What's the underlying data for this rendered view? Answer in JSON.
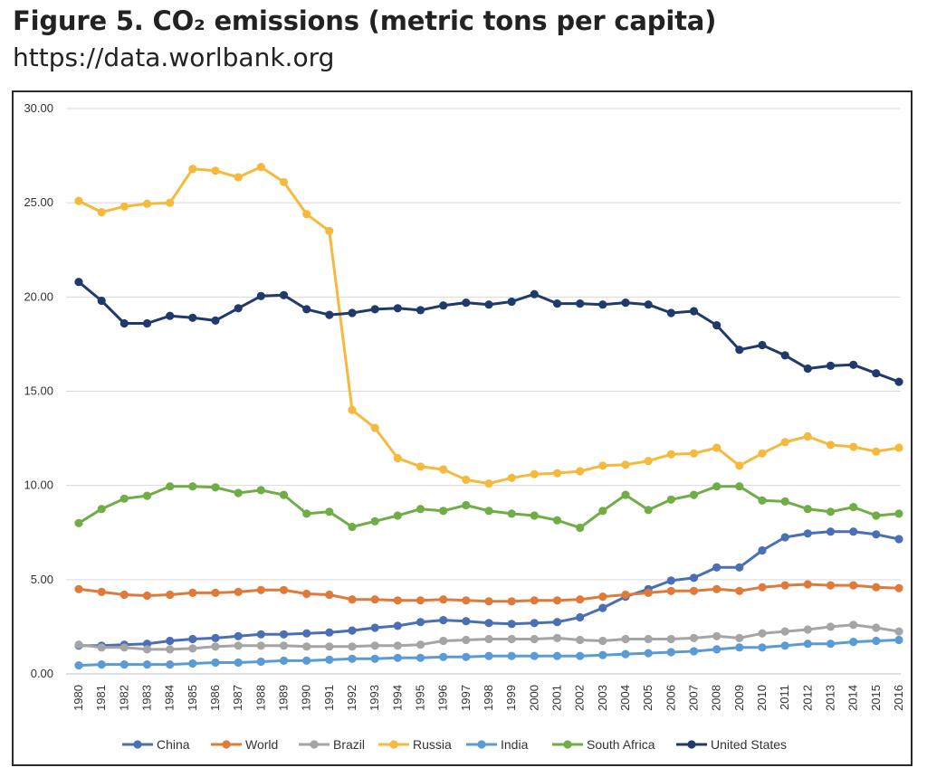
{
  "figure": {
    "title": "Figure 5. CO₂ emissions (metric tons per capita)",
    "source": "https://data.worlbank.org"
  },
  "chart_data": {
    "type": "line",
    "title": "Figure 5. CO₂ emissions (metric tons per capita)",
    "xlabel": "",
    "ylabel": "",
    "ylim": [
      0,
      30
    ],
    "grid": true,
    "legend": "bottom",
    "yticks": [
      "0.00",
      "5.00",
      "10.00",
      "15.00",
      "20.00",
      "25.00",
      "30.00"
    ],
    "x": [
      "1980",
      "1981",
      "1982",
      "1983",
      "1984",
      "1985",
      "1986",
      "1987",
      "1988",
      "1989",
      "1990",
      "1991",
      "1992",
      "1993",
      "1994",
      "1995",
      "1996",
      "1997",
      "1998",
      "1999",
      "2000",
      "2001",
      "2002",
      "2003",
      "2004",
      "2005",
      "2006",
      "2007",
      "2008",
      "2009",
      "2010",
      "2011",
      "2012",
      "2013",
      "2014",
      "2015",
      "2016"
    ],
    "series": [
      {
        "name": "China",
        "color": "#4a6fb5",
        "values": [
          1.5,
          1.5,
          1.55,
          1.6,
          1.75,
          1.85,
          1.9,
          2.0,
          2.1,
          2.1,
          2.15,
          2.2,
          2.3,
          2.45,
          2.55,
          2.75,
          2.85,
          2.8,
          2.7,
          2.65,
          2.7,
          2.75,
          3.0,
          3.5,
          4.1,
          4.5,
          4.95,
          5.1,
          5.65,
          5.65,
          6.55,
          7.25,
          7.45,
          7.55,
          7.55,
          7.4,
          7.15
        ]
      },
      {
        "name": "World",
        "color": "#e07a3a",
        "values": [
          4.5,
          4.35,
          4.2,
          4.15,
          4.2,
          4.3,
          4.3,
          4.35,
          4.45,
          4.45,
          4.25,
          4.2,
          3.95,
          3.95,
          3.9,
          3.9,
          3.95,
          3.9,
          3.85,
          3.85,
          3.9,
          3.9,
          3.95,
          4.1,
          4.2,
          4.3,
          4.4,
          4.4,
          4.5,
          4.4,
          4.6,
          4.7,
          4.75,
          4.7,
          4.7,
          4.6,
          4.55
        ]
      },
      {
        "name": "Brazil",
        "color": "#a5a5a5",
        "values": [
          1.55,
          1.4,
          1.4,
          1.3,
          1.3,
          1.35,
          1.45,
          1.5,
          1.5,
          1.5,
          1.45,
          1.45,
          1.45,
          1.5,
          1.5,
          1.55,
          1.75,
          1.8,
          1.85,
          1.85,
          1.85,
          1.9,
          1.8,
          1.75,
          1.85,
          1.85,
          1.85,
          1.9,
          2.0,
          1.9,
          2.15,
          2.25,
          2.35,
          2.5,
          2.6,
          2.45,
          2.25
        ]
      },
      {
        "name": "Russia",
        "color": "#f5b93d",
        "values": [
          25.1,
          24.5,
          24.8,
          24.95,
          25.0,
          26.8,
          26.7,
          26.35,
          26.9,
          26.1,
          24.4,
          23.5,
          14.0,
          13.05,
          11.45,
          11.0,
          10.85,
          10.3,
          10.1,
          10.4,
          10.6,
          10.65,
          10.75,
          11.05,
          11.1,
          11.3,
          11.65,
          11.7,
          12.0,
          11.05,
          11.7,
          12.3,
          12.6,
          12.15,
          12.05,
          11.8,
          12.0
        ]
      },
      {
        "name": "India",
        "color": "#5b9bd5",
        "values": [
          0.45,
          0.5,
          0.5,
          0.5,
          0.5,
          0.55,
          0.6,
          0.6,
          0.65,
          0.7,
          0.7,
          0.75,
          0.8,
          0.8,
          0.85,
          0.85,
          0.9,
          0.9,
          0.95,
          0.95,
          0.95,
          0.95,
          0.95,
          1.0,
          1.05,
          1.1,
          1.15,
          1.2,
          1.3,
          1.4,
          1.4,
          1.5,
          1.6,
          1.6,
          1.7,
          1.75,
          1.8
        ]
      },
      {
        "name": "South Africa",
        "color": "#70ad47",
        "values": [
          8.0,
          8.75,
          9.3,
          9.45,
          9.95,
          9.95,
          9.9,
          9.6,
          9.75,
          9.5,
          8.5,
          8.6,
          7.8,
          8.1,
          8.4,
          8.75,
          8.65,
          8.95,
          8.65,
          8.5,
          8.4,
          8.15,
          7.75,
          8.65,
          9.5,
          8.7,
          9.25,
          9.5,
          9.95,
          9.95,
          9.2,
          9.15,
          8.75,
          8.6,
          8.85,
          8.4,
          8.5
        ]
      },
      {
        "name": "United States",
        "color": "#1f3a6b",
        "values": [
          20.8,
          19.8,
          18.6,
          18.6,
          19.0,
          18.9,
          18.75,
          19.4,
          20.05,
          20.1,
          19.35,
          19.05,
          19.15,
          19.35,
          19.4,
          19.3,
          19.55,
          19.7,
          19.6,
          19.75,
          20.15,
          19.65,
          19.65,
          19.6,
          19.7,
          19.6,
          19.15,
          19.25,
          18.5,
          17.2,
          17.45,
          16.9,
          16.2,
          16.35,
          16.4,
          15.95,
          15.5
        ]
      }
    ]
  }
}
